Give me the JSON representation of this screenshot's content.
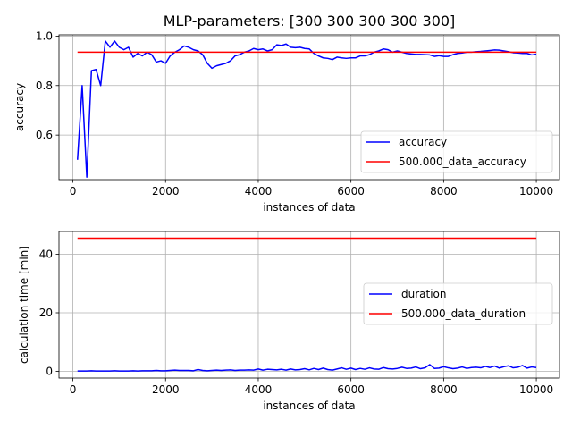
{
  "colors": {
    "series1": "#0000ff",
    "series2": "#ff0000",
    "grid": "#b0b0b0",
    "axis": "#000000"
  },
  "figure_title": "MLP-parameters: [300 300 300 300 300]",
  "chart_data": [
    {
      "type": "line",
      "title": "MLP-parameters: [300 300 300 300 300]",
      "xlabel": "instances of data",
      "ylabel": "accuracy",
      "xlim": [
        -300,
        10500
      ],
      "ylim": [
        0.42,
        1.005
      ],
      "xticks": [
        0,
        2000,
        4000,
        6000,
        8000,
        10000
      ],
      "xtick_labels": [
        "0",
        "2000",
        "4000",
        "6000",
        "8000",
        "10000"
      ],
      "yticks": [
        0.6,
        0.8,
        1.0
      ],
      "ytick_labels": [
        "0.6",
        "0.8",
        "1.0"
      ],
      "grid": true,
      "legend_position": "lower-right",
      "series": [
        {
          "name": "accuracy",
          "color": "#0000ff",
          "x": [
            100,
            200,
            300,
            400,
            500,
            600,
            700,
            800,
            900,
            1000,
            1100,
            1200,
            1300,
            1400,
            1500,
            1600,
            1700,
            1800,
            1900,
            2000,
            2100,
            2200,
            2300,
            2400,
            2500,
            2600,
            2700,
            2800,
            2900,
            3000,
            3100,
            3200,
            3300,
            3400,
            3500,
            3600,
            3700,
            3800,
            3900,
            4000,
            4100,
            4200,
            4300,
            4400,
            4500,
            4600,
            4700,
            4800,
            4900,
            5000,
            5100,
            5200,
            5300,
            5400,
            5500,
            5600,
            5700,
            5800,
            5900,
            6000,
            6100,
            6200,
            6300,
            6400,
            6500,
            6600,
            6700,
            6800,
            6900,
            7000,
            7100,
            7200,
            7300,
            7400,
            7500,
            7600,
            7700,
            7800,
            7900,
            8000,
            8100,
            8200,
            8300,
            8400,
            8500,
            8600,
            8700,
            8800,
            8900,
            9000,
            9100,
            9200,
            9300,
            9400,
            9500,
            9600,
            9700,
            9800,
            9900,
            10000
          ],
          "values": [
            0.5,
            0.8,
            0.43,
            0.86,
            0.865,
            0.8,
            0.98,
            0.955,
            0.98,
            0.955,
            0.945,
            0.955,
            0.915,
            0.93,
            0.92,
            0.935,
            0.925,
            0.895,
            0.9,
            0.89,
            0.92,
            0.935,
            0.945,
            0.96,
            0.955,
            0.945,
            0.94,
            0.925,
            0.89,
            0.87,
            0.88,
            0.885,
            0.89,
            0.9,
            0.92,
            0.925,
            0.935,
            0.94,
            0.95,
            0.945,
            0.948,
            0.94,
            0.945,
            0.965,
            0.962,
            0.968,
            0.955,
            0.953,
            0.955,
            0.95,
            0.948,
            0.93,
            0.92,
            0.912,
            0.91,
            0.905,
            0.915,
            0.912,
            0.91,
            0.912,
            0.912,
            0.92,
            0.92,
            0.925,
            0.935,
            0.94,
            0.948,
            0.945,
            0.935,
            0.94,
            0.935,
            0.93,
            0.928,
            0.926,
            0.926,
            0.925,
            0.924,
            0.918,
            0.921,
            0.918,
            0.918,
            0.925,
            0.93,
            0.932,
            0.935,
            0.935,
            0.937,
            0.938,
            0.94,
            0.942,
            0.944,
            0.943,
            0.94,
            0.937,
            0.933,
            0.932,
            0.93,
            0.93,
            0.924,
            0.927
          ]
        },
        {
          "name": "500.000_data_accuracy",
          "color": "#ff0000",
          "x": [
            100,
            10000
          ],
          "values": [
            0.935,
            0.935
          ]
        }
      ]
    },
    {
      "type": "line",
      "title": "",
      "xlabel": "instances of data",
      "ylabel": "calculation time [min]",
      "xlim": [
        -300,
        10500
      ],
      "ylim": [
        -2.3,
        47.8
      ],
      "xticks": [
        0,
        2000,
        4000,
        6000,
        8000,
        10000
      ],
      "xtick_labels": [
        "0",
        "2000",
        "4000",
        "6000",
        "8000",
        "10000"
      ],
      "yticks": [
        0,
        20,
        40
      ],
      "ytick_labels": [
        "0",
        "20",
        "40"
      ],
      "grid": true,
      "legend_position": "center-right",
      "series": [
        {
          "name": "duration",
          "color": "#0000ff",
          "x": [
            100,
            200,
            300,
            400,
            500,
            600,
            700,
            800,
            900,
            1000,
            1100,
            1200,
            1300,
            1400,
            1500,
            1600,
            1700,
            1800,
            1900,
            2000,
            2100,
            2200,
            2300,
            2400,
            2500,
            2600,
            2700,
            2800,
            2900,
            3000,
            3100,
            3200,
            3300,
            3400,
            3500,
            3600,
            3700,
            3800,
            3900,
            4000,
            4100,
            4200,
            4300,
            4400,
            4500,
            4600,
            4700,
            4800,
            4900,
            5000,
            5100,
            5200,
            5300,
            5400,
            5500,
            5600,
            5700,
            5800,
            5900,
            6000,
            6100,
            6200,
            6300,
            6400,
            6500,
            6600,
            6700,
            6800,
            6900,
            7000,
            7100,
            7200,
            7300,
            7400,
            7500,
            7600,
            7700,
            7800,
            7900,
            8000,
            8100,
            8200,
            8300,
            8400,
            8500,
            8600,
            8700,
            8800,
            8900,
            9000,
            9100,
            9200,
            9300,
            9400,
            9500,
            9600,
            9700,
            9800,
            9900,
            10000
          ],
          "values": [
            0.1,
            0.1,
            0.1,
            0.2,
            0.1,
            0.1,
            0.1,
            0.1,
            0.2,
            0.1,
            0.1,
            0.1,
            0.2,
            0.1,
            0.2,
            0.2,
            0.2,
            0.3,
            0.2,
            0.2,
            0.3,
            0.4,
            0.3,
            0.3,
            0.3,
            0.2,
            0.6,
            0.3,
            0.2,
            0.3,
            0.4,
            0.3,
            0.4,
            0.5,
            0.3,
            0.4,
            0.4,
            0.5,
            0.4,
            0.8,
            0.4,
            0.7,
            0.6,
            0.5,
            0.7,
            0.4,
            0.8,
            0.5,
            0.6,
            0.9,
            0.5,
            1.0,
            0.6,
            1.1,
            0.6,
            0.4,
            0.8,
            1.2,
            0.7,
            1.1,
            0.6,
            1.0,
            0.7,
            1.2,
            0.8,
            0.7,
            1.3,
            0.9,
            0.8,
            1.0,
            1.4,
            1.0,
            1.1,
            1.5,
            0.9,
            1.2,
            2.3,
            1.0,
            1.1,
            1.6,
            1.2,
            0.9,
            1.1,
            1.5,
            1.0,
            1.3,
            1.4,
            1.2,
            1.7,
            1.3,
            1.8,
            1.1,
            1.6,
            1.9,
            1.2,
            1.4,
            2.0,
            1.1,
            1.5,
            1.3
          ]
        },
        {
          "name": "500.000_data_duration",
          "color": "#ff0000",
          "x": [
            100,
            10000
          ],
          "values": [
            45.5,
            45.5
          ]
        }
      ]
    }
  ]
}
